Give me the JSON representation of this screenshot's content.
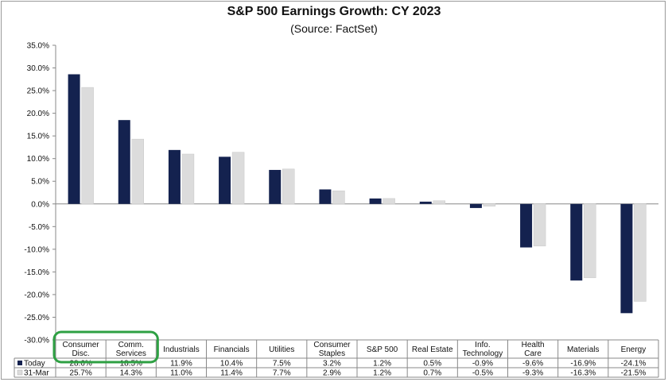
{
  "chart_data": {
    "type": "bar",
    "title": "S&P 500 Earnings Growth: CY 2023",
    "subtitle": "(Source: FactSet)",
    "categories": [
      [
        "Consumer",
        "Disc."
      ],
      [
        "Comm.",
        "Services"
      ],
      [
        "Industrials"
      ],
      [
        "Financials"
      ],
      [
        "Utilities"
      ],
      [
        "Consumer",
        "Staples"
      ],
      [
        "S&P 500"
      ],
      [
        "Real Estate"
      ],
      [
        "Info.",
        "Technology"
      ],
      [
        "Health",
        "Care"
      ],
      [
        "Materials"
      ],
      [
        "Energy"
      ]
    ],
    "series": [
      {
        "name": "Today",
        "color": "#14224f",
        "values": [
          28.6,
          18.5,
          11.9,
          10.4,
          7.5,
          3.2,
          1.2,
          0.5,
          -0.9,
          -9.6,
          -16.9,
          -24.1
        ],
        "labels": [
          "28.6%",
          "18.5%",
          "11.9%",
          "10.4%",
          "7.5%",
          "3.2%",
          "1.2%",
          "0.5%",
          "-0.9%",
          "-9.6%",
          "-16.9%",
          "-24.1%"
        ]
      },
      {
        "name": "31-Mar",
        "color": "#dcdcdc",
        "values": [
          25.7,
          14.3,
          11.0,
          11.4,
          7.7,
          2.9,
          1.2,
          0.7,
          -0.5,
          -9.3,
          -16.3,
          -21.5
        ],
        "labels": [
          "25.7%",
          "14.3%",
          "11.0%",
          "11.4%",
          "7.7%",
          "2.9%",
          "1.2%",
          "0.7%",
          "-0.5%",
          "-9.3%",
          "-16.3%",
          "-21.5%"
        ]
      }
    ],
    "ylim": [
      -30,
      35
    ],
    "yticks": [
      35,
      30,
      25,
      20,
      15,
      10,
      5,
      0,
      -5,
      -10,
      -15,
      -20,
      -25,
      -30
    ],
    "ytick_labels": [
      "35.0%",
      "30.0%",
      "25.0%",
      "20.0%",
      "15.0%",
      "10.0%",
      "5.0%",
      "0.0%",
      "-5.0%",
      "-10.0%",
      "-15.0%",
      "-20.0%",
      "-25.0%",
      "-30.0%"
    ],
    "data_table": true,
    "highlight": {
      "categories": [
        0,
        1
      ],
      "color": "#2ea043"
    }
  }
}
